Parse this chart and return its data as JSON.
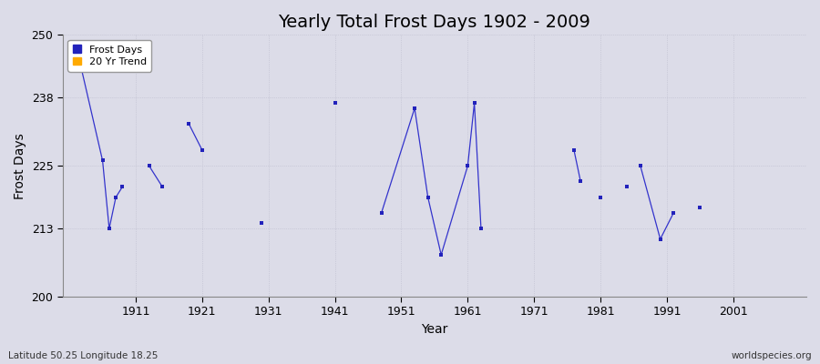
{
  "title": "Yearly Total Frost Days 1902 - 2009",
  "xlabel": "Year",
  "ylabel": "Frost Days",
  "bottom_left_label": "Latitude 50.25 Longitude 18.25",
  "bottom_right_label": "worldspecies.org",
  "ylim": [
    200,
    250
  ],
  "xlim": [
    1900,
    2012
  ],
  "yticks": [
    200,
    213,
    225,
    238,
    250
  ],
  "xticks": [
    1911,
    1921,
    1931,
    1941,
    1951,
    1961,
    1971,
    1981,
    1991,
    2001
  ],
  "bg_color": "#dcdce8",
  "plot_bg_color": "#dcdce8",
  "line_color": "#3333cc",
  "marker_color": "#2222bb",
  "data_points": [
    [
      1902,
      248
    ],
    [
      1906,
      226
    ],
    [
      1907,
      213
    ],
    [
      1908,
      219
    ],
    [
      1909,
      221
    ],
    [
      1913,
      225
    ],
    [
      1915,
      221
    ],
    [
      1919,
      233
    ],
    [
      1921,
      228
    ],
    [
      1930,
      214
    ],
    [
      1941,
      237
    ],
    [
      1948,
      216
    ],
    [
      1953,
      236
    ],
    [
      1955,
      219
    ],
    [
      1957,
      208
    ],
    [
      1961,
      225
    ],
    [
      1962,
      237
    ],
    [
      1963,
      213
    ],
    [
      1977,
      228
    ],
    [
      1978,
      222
    ],
    [
      1981,
      219
    ],
    [
      1985,
      221
    ],
    [
      1987,
      225
    ],
    [
      1990,
      211
    ],
    [
      1992,
      216
    ],
    [
      1996,
      217
    ]
  ],
  "segment_groups": [
    [
      0,
      1,
      2,
      3,
      4
    ],
    [
      5,
      6
    ],
    [
      7,
      8
    ],
    [
      11,
      12,
      13,
      14,
      15,
      16,
      17
    ],
    [
      18,
      19
    ],
    [
      22,
      23,
      24
    ],
    [
      25
    ]
  ],
  "title_fontsize": 14,
  "axis_label_fontsize": 10,
  "tick_fontsize": 9,
  "legend_fontsize": 8
}
